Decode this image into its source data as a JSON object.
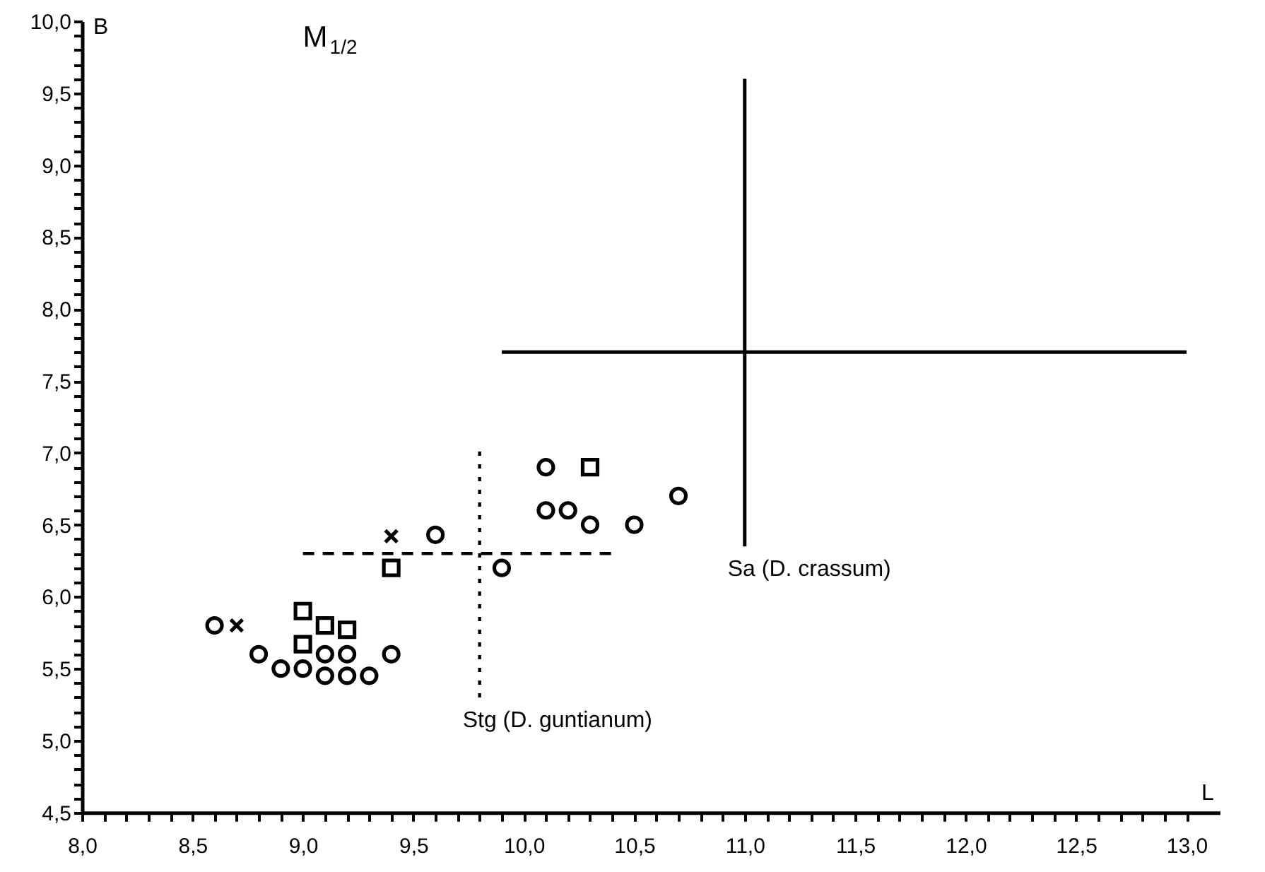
{
  "chart_data": {
    "type": "scatter",
    "title": "M$_{1/2}$",
    "xlabel": "L",
    "ylabel": "B",
    "xlim": [
      8.0,
      13.15
    ],
    "ylim": [
      4.5,
      10.0
    ],
    "xticks": [
      {
        "value": 8.0,
        "label": "8,0"
      },
      {
        "value": 8.1,
        "label": null
      },
      {
        "value": 8.2,
        "label": null
      },
      {
        "value": 8.3,
        "label": null
      },
      {
        "value": 8.4,
        "label": null
      },
      {
        "value": 8.5,
        "label": "8,5"
      },
      {
        "value": 8.6,
        "label": null
      },
      {
        "value": 8.7,
        "label": null
      },
      {
        "value": 8.8,
        "label": null
      },
      {
        "value": 8.9,
        "label": null
      },
      {
        "value": 9.0,
        "label": "9,0"
      },
      {
        "value": 9.1,
        "label": null
      },
      {
        "value": 9.2,
        "label": null
      },
      {
        "value": 9.3,
        "label": null
      },
      {
        "value": 9.4,
        "label": null
      },
      {
        "value": 9.5,
        "label": "9,5"
      },
      {
        "value": 9.6,
        "label": null
      },
      {
        "value": 9.7,
        "label": null
      },
      {
        "value": 9.8,
        "label": null
      },
      {
        "value": 9.9,
        "label": null
      },
      {
        "value": 10.0,
        "label": "10,0"
      },
      {
        "value": 10.1,
        "label": null
      },
      {
        "value": 10.2,
        "label": null
      },
      {
        "value": 10.3,
        "label": null
      },
      {
        "value": 10.4,
        "label": null
      },
      {
        "value": 10.5,
        "label": "10,5"
      },
      {
        "value": 10.6,
        "label": null
      },
      {
        "value": 10.7,
        "label": null
      },
      {
        "value": 10.8,
        "label": null
      },
      {
        "value": 10.9,
        "label": null
      },
      {
        "value": 11.0,
        "label": "11,0"
      },
      {
        "value": 11.1,
        "label": null
      },
      {
        "value": 11.2,
        "label": null
      },
      {
        "value": 11.3,
        "label": null
      },
      {
        "value": 11.4,
        "label": null
      },
      {
        "value": 11.5,
        "label": "11,5"
      },
      {
        "value": 11.6,
        "label": null
      },
      {
        "value": 11.7,
        "label": null
      },
      {
        "value": 11.8,
        "label": null
      },
      {
        "value": 11.9,
        "label": null
      },
      {
        "value": 12.0,
        "label": "12,0"
      },
      {
        "value": 12.1,
        "label": null
      },
      {
        "value": 12.2,
        "label": null
      },
      {
        "value": 12.3,
        "label": null
      },
      {
        "value": 12.4,
        "label": null
      },
      {
        "value": 12.5,
        "label": "12,5"
      },
      {
        "value": 12.6,
        "label": null
      },
      {
        "value": 12.7,
        "label": null
      },
      {
        "value": 12.8,
        "label": null
      },
      {
        "value": 12.9,
        "label": null
      },
      {
        "value": 13.0,
        "label": "13,0"
      }
    ],
    "yticks": [
      {
        "value": 4.5,
        "label": "4,5"
      },
      {
        "value": 4.6,
        "label": null
      },
      {
        "value": 4.7,
        "label": null
      },
      {
        "value": 4.8,
        "label": null
      },
      {
        "value": 4.9,
        "label": null
      },
      {
        "value": 5.0,
        "label": "5,0"
      },
      {
        "value": 5.1,
        "label": null
      },
      {
        "value": 5.2,
        "label": null
      },
      {
        "value": 5.3,
        "label": null
      },
      {
        "value": 5.4,
        "label": null
      },
      {
        "value": 5.5,
        "label": "5,5"
      },
      {
        "value": 5.6,
        "label": null
      },
      {
        "value": 5.7,
        "label": null
      },
      {
        "value": 5.8,
        "label": null
      },
      {
        "value": 5.9,
        "label": null
      },
      {
        "value": 6.0,
        "label": "6,0"
      },
      {
        "value": 6.1,
        "label": null
      },
      {
        "value": 6.2,
        "label": null
      },
      {
        "value": 6.3,
        "label": null
      },
      {
        "value": 6.4,
        "label": null
      },
      {
        "value": 6.5,
        "label": "6,5"
      },
      {
        "value": 6.6,
        "label": null
      },
      {
        "value": 6.7,
        "label": null
      },
      {
        "value": 6.8,
        "label": null
      },
      {
        "value": 6.9,
        "label": null
      },
      {
        "value": 7.0,
        "label": "7,0"
      },
      {
        "value": 7.1,
        "label": null
      },
      {
        "value": 7.2,
        "label": null
      },
      {
        "value": 7.3,
        "label": null
      },
      {
        "value": 7.4,
        "label": null
      },
      {
        "value": 7.5,
        "label": "7,5"
      },
      {
        "value": 7.6,
        "label": null
      },
      {
        "value": 7.7,
        "label": null
      },
      {
        "value": 7.8,
        "label": null
      },
      {
        "value": 7.9,
        "label": null
      },
      {
        "value": 8.0,
        "label": "8,0"
      },
      {
        "value": 8.1,
        "label": null
      },
      {
        "value": 8.2,
        "label": null
      },
      {
        "value": 8.3,
        "label": null
      },
      {
        "value": 8.4,
        "label": null
      },
      {
        "value": 8.5,
        "label": "8,5"
      },
      {
        "value": 8.6,
        "label": null
      },
      {
        "value": 8.7,
        "label": null
      },
      {
        "value": 8.8,
        "label": null
      },
      {
        "value": 8.9,
        "label": null
      },
      {
        "value": 9.0,
        "label": "9,0"
      },
      {
        "value": 9.1,
        "label": null
      },
      {
        "value": 9.2,
        "label": null
      },
      {
        "value": 9.3,
        "label": null
      },
      {
        "value": 9.4,
        "label": null
      },
      {
        "value": 9.5,
        "label": "9,5"
      },
      {
        "value": 9.6,
        "label": null
      },
      {
        "value": 9.7,
        "label": null
      },
      {
        "value": 9.8,
        "label": null
      },
      {
        "value": 9.9,
        "label": null
      },
      {
        "value": 10.0,
        "label": "10,0"
      }
    ],
    "grid": false,
    "series": [
      {
        "marker": "circle",
        "color": "#000000",
        "x": [
          8.6,
          8.8,
          8.9,
          9.0,
          9.1,
          9.1,
          9.2,
          9.2,
          9.3,
          9.4,
          9.6,
          9.9,
          10.1,
          10.1,
          10.2,
          10.3,
          10.5,
          10.7
        ],
        "values": [
          5.8,
          5.6,
          5.5,
          5.5,
          5.6,
          5.45,
          5.6,
          5.45,
          5.45,
          5.6,
          6.43,
          6.2,
          6.9,
          6.6,
          6.6,
          6.5,
          6.5,
          6.7
        ]
      },
      {
        "marker": "square",
        "color": "#000000",
        "x": [
          9.0,
          9.0,
          9.1,
          9.2,
          9.4,
          10.3
        ],
        "values": [
          5.9,
          5.67,
          5.8,
          5.77,
          6.2,
          6.9
        ]
      },
      {
        "marker": "cross",
        "color": "#000000",
        "x": [
          8.7,
          9.4
        ],
        "values": [
          5.8,
          6.42
        ]
      },
      {
        "type": "line",
        "line_style": "dotted",
        "color": "#000000",
        "x": [
          9.8,
          9.8
        ],
        "values": [
          5.3,
          7.05
        ]
      },
      {
        "type": "line",
        "line_style": "dashed",
        "color": "#000000",
        "x": [
          9.0,
          10.4
        ],
        "values": [
          6.3,
          6.3
        ]
      },
      {
        "type": "line",
        "line_style": "solid",
        "color": "#000000",
        "x": [
          11.0,
          11.0
        ],
        "values": [
          6.35,
          9.6
        ]
      },
      {
        "type": "line",
        "line_style": "solid",
        "color": "#000000",
        "x": [
          9.9,
          13.0
        ],
        "values": [
          7.7,
          7.7
        ]
      }
    ],
    "annotations": [
      {
        "text": "Stg (D. guntianum)",
        "x": 9.8,
        "y": 5.3
      },
      {
        "text": "Sa (D. crassum)",
        "x": 11.0,
        "y": 6.35
      }
    ]
  }
}
